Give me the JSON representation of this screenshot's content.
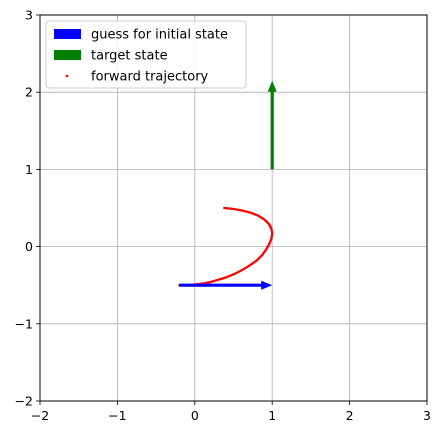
{
  "chart_data": {
    "type": "scatter",
    "title": "",
    "xlabel": "",
    "ylabel": "",
    "xlim": [
      -2,
      3
    ],
    "ylim": [
      -2,
      3
    ],
    "xticks": [
      -2,
      -1,
      0,
      1,
      2,
      3
    ],
    "yticks": [
      -2,
      -1,
      0,
      1,
      2,
      3
    ],
    "xtick_labels": [
      "−2",
      "−1",
      "0",
      "1",
      "2",
      "3"
    ],
    "ytick_labels": [
      "−2",
      "−1",
      "0",
      "1",
      "2",
      "3"
    ],
    "grid": true,
    "legend_placement": "top-left",
    "series": [
      {
        "name": "guess for initial state",
        "kind": "arrow",
        "color": "#0000ff",
        "x": [
          -0.2,
          1.0
        ],
        "y": [
          -0.5,
          -0.5
        ]
      },
      {
        "name": "target state",
        "kind": "arrow",
        "color": "#008000",
        "x": [
          1.0,
          1.0
        ],
        "y": [
          1.0,
          2.15
        ]
      },
      {
        "name": "forward trajectory",
        "kind": "scatter",
        "color": "#ff0000",
        "x": [
          -0.2,
          -0.1,
          0.0,
          0.1,
          0.2,
          0.3,
          0.4,
          0.5,
          0.6,
          0.7,
          0.8,
          0.87,
          0.92,
          0.96,
          0.99,
          1.0,
          0.99,
          0.96,
          0.9,
          0.82,
          0.72,
          0.6,
          0.48,
          0.38
        ],
        "y": [
          -0.5,
          -0.5,
          -0.49,
          -0.48,
          -0.46,
          -0.43,
          -0.4,
          -0.36,
          -0.31,
          -0.25,
          -0.18,
          -0.11,
          -0.04,
          0.03,
          0.1,
          0.17,
          0.23,
          0.29,
          0.35,
          0.4,
          0.44,
          0.47,
          0.49,
          0.5
        ]
      }
    ]
  }
}
